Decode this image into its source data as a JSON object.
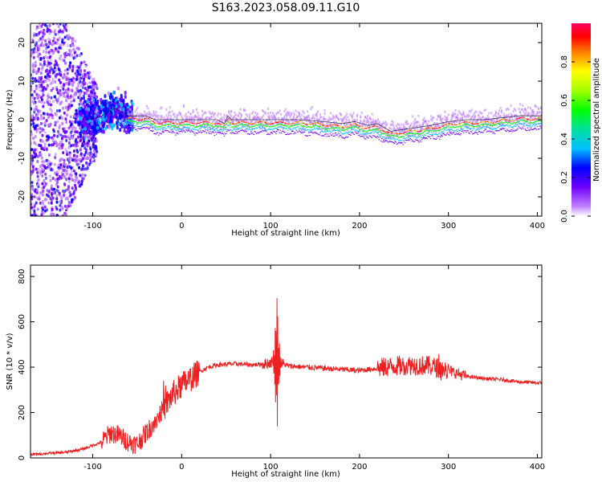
{
  "figure": {
    "title": "S163.2023.058.09.11.G10"
  },
  "chart_data": [
    {
      "type": "heatmap",
      "xlabel": "Height of straight line (km)",
      "ylabel": "Frequency (Hz)",
      "xlim": [
        -170,
        405
      ],
      "ylim": [
        -25,
        25
      ],
      "x_ticks": [
        -100,
        0,
        100,
        200,
        300,
        400
      ],
      "y_ticks": [
        -20,
        -10,
        0,
        10,
        20
      ],
      "colorbar": {
        "label": "Normalized spectral amplitude",
        "range": [
          0,
          1
        ],
        "ticks": [
          0.0,
          0.2,
          0.4,
          0.6,
          0.8
        ],
        "colors": [
          "#ffffff",
          "#c080ff",
          "#7000ff",
          "#0000ff",
          "#00c0ff",
          "#00e0a0",
          "#00ff00",
          "#a0ff00",
          "#ffff00",
          "#ff8000",
          "#ff0000",
          "#ff0060"
        ]
      },
      "line_of_sight_frequency_hz": [
        [
          -105,
          0
        ],
        [
          -90,
          1
        ],
        [
          -75,
          3
        ],
        [
          -60,
          1
        ],
        [
          -50,
          1
        ],
        [
          -40,
          1
        ],
        [
          -30,
          0
        ],
        [
          -10,
          0
        ],
        [
          10,
          0
        ],
        [
          30,
          0
        ],
        [
          40,
          0
        ],
        [
          48,
          -1
        ],
        [
          52,
          1
        ],
        [
          56,
          0
        ],
        [
          70,
          0
        ],
        [
          100,
          0
        ],
        [
          130,
          0
        ],
        [
          160,
          -0.5
        ],
        [
          180,
          -1
        ],
        [
          195,
          -0.5
        ],
        [
          210,
          -1.5
        ],
        [
          220,
          -1
        ],
        [
          235,
          -3
        ],
        [
          250,
          -2.5
        ],
        [
          265,
          -2
        ],
        [
          280,
          -1.5
        ],
        [
          300,
          -0.5
        ],
        [
          320,
          0
        ],
        [
          340,
          0
        ],
        [
          360,
          0.5
        ],
        [
          380,
          1
        ],
        [
          405,
          1
        ]
      ]
    },
    {
      "type": "line",
      "xlabel": "Height of straight line (km)",
      "ylabel": "SNR (10 * v/v)",
      "xlim": [
        -170,
        405
      ],
      "ylim": [
        0,
        850
      ],
      "x_ticks": [
        -100,
        0,
        100,
        200,
        300,
        400
      ],
      "y_ticks": [
        0,
        200,
        400,
        600,
        800
      ],
      "series": [
        {
          "color": "#ee2020",
          "points": [
            [
              -170,
              15
            ],
            [
              -150,
              20
            ],
            [
              -130,
              25
            ],
            [
              -110,
              40
            ],
            [
              -90,
              70
            ],
            [
              -80,
              110
            ],
            [
              -70,
              100
            ],
            [
              -60,
              70
            ],
            [
              -50,
              60
            ],
            [
              -40,
              110
            ],
            [
              -30,
              160
            ],
            [
              -20,
              220
            ],
            [
              -10,
              280
            ],
            [
              0,
              320
            ],
            [
              10,
              350
            ],
            [
              20,
              380
            ],
            [
              30,
              400
            ],
            [
              40,
              410
            ],
            [
              60,
              415
            ],
            [
              80,
              410
            ],
            [
              95,
              415
            ],
            [
              100,
              420
            ],
            [
              105,
              430
            ],
            [
              110,
              420
            ],
            [
              120,
              405
            ],
            [
              140,
              400
            ],
            [
              160,
              395
            ],
            [
              180,
              390
            ],
            [
              200,
              385
            ],
            [
              220,
              395
            ],
            [
              240,
              405
            ],
            [
              260,
              410
            ],
            [
              280,
              405
            ],
            [
              300,
              385
            ],
            [
              320,
              360
            ],
            [
              340,
              350
            ],
            [
              360,
              345
            ],
            [
              380,
              335
            ],
            [
              405,
              330
            ]
          ]
        }
      ]
    }
  ]
}
